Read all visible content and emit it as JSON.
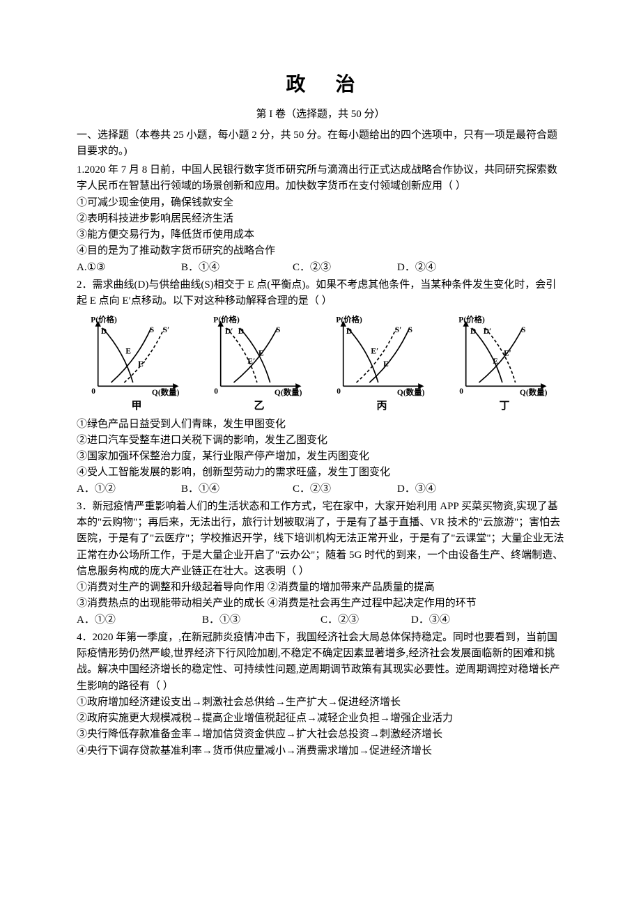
{
  "title": "政  治",
  "subtitle": "第 I 卷（选择题，共 50 分）",
  "instructions": "一、选择题（本卷共 25 小题，每小题 2 分，共 50 分。在每小题给出的四个选项中，只有一项是最符合题目要求的。)",
  "q1": {
    "stem": "1.2020 年 7 月 8 日前，中国人民银行数字货币研究所与滴滴出行正式达成战略合作协议，共同研究探索数字人民币在智慧出行领域的场景创新和应用。加快数字货币在支付领域创新应用（  ）",
    "s1": "①可减少现金使用，确保钱款安全",
    "s2": "②表明科技进步影响居民经济生活",
    "s3": "③能方便交易行为，降低货币使用成本",
    "s4": "④目的是为了推动数字货币研究的战略合作",
    "optA": "A.①③",
    "optB": "B．①④",
    "optC": "C．②③",
    "optD": "D．②④"
  },
  "q2": {
    "stem": "2．需求曲线(D)与供给曲线(S)相交于 E 点(平衡点)。如果不考虑其他条件，当某种条件发生变化时，会引起 E 点向 E′点移动。以下对这种移动解释合理的是（  ）",
    "s1": "①绿色产品日益受到人们青睐，发生甲图变化",
    "s2": "②进口汽车受整车进口关税下调的影响，发生乙图变化",
    "s3": "③国家加强环保整治力度，某行业限产停产增加，发生丙图变化",
    "s4": "④受人工智能发展的影响，创新型劳动力的需求旺盛，发生丁图变化",
    "optA": "A．①②",
    "optB": "B．①④",
    "optC": "C．②③",
    "optD": "D．③④",
    "charts": {
      "labels": [
        "甲",
        "乙",
        "丙",
        "丁"
      ],
      "axis_y": "P(价格)",
      "axis_x": "Q(数量)",
      "stroke_color": "#000000",
      "dash_pattern": "4,3",
      "line_width": 1.6,
      "background": "#ffffff",
      "font_size": 11,
      "panels": [
        {
          "D_label": "D",
          "S_label": "S",
          "Sprime_label": "S′",
          "E_label": "E",
          "Eprime_label": "E′",
          "D_line": [
            [
              18,
              20
            ],
            [
              60,
              95
            ]
          ],
          "S_line": [
            [
              30,
              95
            ],
            [
              85,
              20
            ]
          ],
          "Sprime_line": [
            [
              48,
              95
            ],
            [
              103,
              20
            ]
          ],
          "Sprime_dashed": true,
          "E_pos": [
            46,
            52
          ],
          "Eprime_pos": [
            63,
            70
          ]
        },
        {
          "D_label": "D",
          "Dprime_label": "D′",
          "S_label": "S",
          "E_label": "E",
          "Eprime_label": "E′",
          "D_line": [
            [
              38,
              20
            ],
            [
              80,
              95
            ]
          ],
          "Dprime_line": [
            [
              20,
              20
            ],
            [
              62,
              95
            ]
          ],
          "Dprime_dashed": true,
          "S_line": [
            [
              30,
              95
            ],
            [
              90,
              20
            ]
          ],
          "E_pos": [
            60,
            55
          ],
          "Eprime_pos": [
            45,
            66
          ]
        },
        {
          "D_label": "D",
          "S_label": "S",
          "Sprime_label": "S′",
          "E_label": "E",
          "Eprime_label": "E′",
          "D_line": [
            [
              18,
              20
            ],
            [
              60,
              95
            ]
          ],
          "S_line": [
            [
              48,
              95
            ],
            [
              103,
              20
            ]
          ],
          "Sprime_line": [
            [
              30,
              95
            ],
            [
              85,
              20
            ]
          ],
          "Sprime_dashed": true,
          "E_pos": [
            63,
            70
          ],
          "Eprime_pos": [
            46,
            52
          ]
        },
        {
          "D_label": "D",
          "Dprime_label": "D′",
          "S_label": "S",
          "E_label": "E",
          "Eprime_label": "E′",
          "D_line": [
            [
              20,
              20
            ],
            [
              62,
              95
            ]
          ],
          "Dprime_line": [
            [
              38,
              20
            ],
            [
              80,
              95
            ]
          ],
          "Dprime_dashed": true,
          "S_line": [
            [
              30,
              95
            ],
            [
              90,
              20
            ]
          ],
          "E_pos": [
            45,
            66
          ],
          "Eprime_pos": [
            60,
            55
          ]
        }
      ]
    }
  },
  "q3": {
    "stem": "3．新冠疫情严重影响着人们的生活状态和工作方式，宅在家中，大家开始利用 APP 买菜买物资,实现了基本的\"云购物\"；再后来，无法出行，旅行计划被取消了，于是有了基于直播、VR 技术的\"云旅游\"；害怕去医院，于是有了\"云医疗\"；学校推迟开学，线下培训机构无法正常开业，于是有了\"云课堂\"；大量企业无法正常在办公场所工作，于是大量企业开启了\"云办公\"；随着 5G 时代的到来，一个由设备生产、终端制造、信息服务构成的庞大产业链正在壮大。这表明（  ）",
    "s1": "①消费对生产的调整和升级起着导向作用 ②消费量的增加带来产品质量的提高",
    "s2": "③消费热点的出现能带动相关产业的成长 ④消费是社会再生产过程中起决定作用的环节",
    "optA": "A．①②",
    "optB": "B．①③",
    "optC": "C．②③",
    "optD": "D．③④"
  },
  "q4": {
    "stem": "4．2020 年第一季度，,在新冠肺炎疫情冲击下，我国经济社会大局总体保持稳定。同时也要看到，当前国际疫情形势仍然严峻,世界经济下行风险加剧,不稳定不确定因素显著增多,经济社会发展面临新的困难和挑战。解决中国经济增长的稳定性、可持续性问题,逆周期调节政策有其现实必要性。逆周期调控对稳增长产生影响的路径有（  ）",
    "s1": "①政府增加经济建设支出→刺激社会总供给→生产扩大→促进经济增长",
    "s2": "②政府实施更大规模减税→提高企业增值税起征点→减轻企业负担→增强企业活力",
    "s3": "③央行降低存款准备金率→增加信贷资金供应→扩大社会总投资→刺激经济增长",
    "s4": "④央行下调存贷款基准利率→货币供应量减小→消费需求增加→促进经济增长"
  }
}
